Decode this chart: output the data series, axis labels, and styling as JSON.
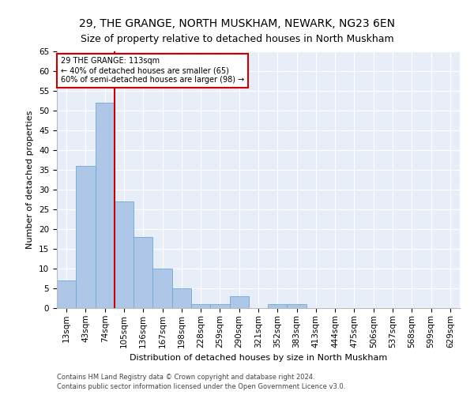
{
  "title": "29, THE GRANGE, NORTH MUSKHAM, NEWARK, NG23 6EN",
  "subtitle": "Size of property relative to detached houses in North Muskham",
  "xlabel": "Distribution of detached houses by size in North Muskham",
  "ylabel": "Number of detached properties",
  "categories": [
    "13sqm",
    "43sqm",
    "74sqm",
    "105sqm",
    "136sqm",
    "167sqm",
    "198sqm",
    "228sqm",
    "259sqm",
    "290sqm",
    "321sqm",
    "352sqm",
    "383sqm",
    "413sqm",
    "444sqm",
    "475sqm",
    "506sqm",
    "537sqm",
    "568sqm",
    "599sqm",
    "629sqm"
  ],
  "values": [
    7,
    36,
    52,
    27,
    18,
    10,
    5,
    1,
    1,
    3,
    0,
    1,
    1,
    0,
    0,
    0,
    0,
    0,
    0,
    0,
    0
  ],
  "bar_color": "#aec6e8",
  "bar_edge_color": "#6aaad4",
  "highlight_color": "#cc0000",
  "annotation_text": "29 THE GRANGE: 113sqm\n← 40% of detached houses are smaller (65)\n60% of semi-detached houses are larger (98) →",
  "annotation_box_color": "#ffffff",
  "annotation_box_edge": "#cc0000",
  "ylim": [
    0,
    65
  ],
  "yticks": [
    0,
    5,
    10,
    15,
    20,
    25,
    30,
    35,
    40,
    45,
    50,
    55,
    60,
    65
  ],
  "background_color": "#e8eef8",
  "footer1": "Contains HM Land Registry data © Crown copyright and database right 2024.",
  "footer2": "Contains public sector information licensed under the Open Government Licence v3.0.",
  "title_fontsize": 10,
  "subtitle_fontsize": 9,
  "axis_label_fontsize": 8,
  "tick_fontsize": 7.5,
  "footer_fontsize": 6
}
